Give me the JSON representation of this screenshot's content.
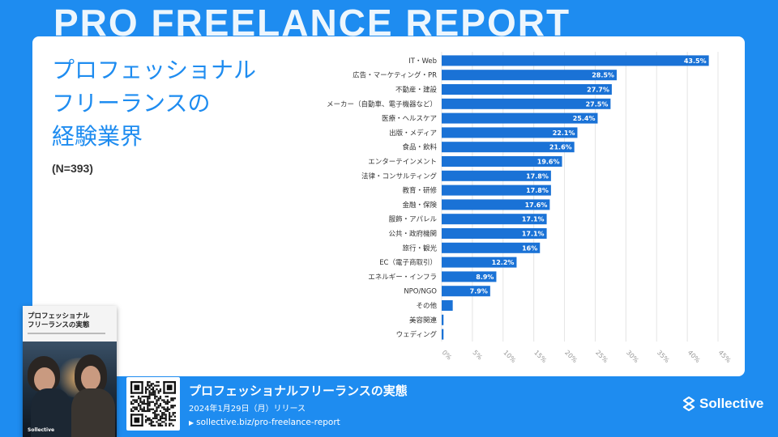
{
  "background_title": "PRO FREELANCE REPORT",
  "title_lines": [
    "プロフェッショナル",
    "フリーランスの",
    "経験業界"
  ],
  "sample_size": "(N=393)",
  "chart_data": {
    "type": "bar",
    "orientation": "horizontal",
    "categories": [
      "IT・Web",
      "広告・マーケティング・PR",
      "不動産・建設",
      "メーカー（自動車、電子機器など）",
      "医療・ヘルスケア",
      "出版・メディア",
      "食品・飲料",
      "エンターテインメント",
      "法律・コンサルティング",
      "教育・研修",
      "金融・保険",
      "服飾・アパレル",
      "公共・政府機関",
      "旅行・観光",
      "EC（電子商取引）",
      "エネルギー・インフラ",
      "NPO/NGO",
      "その他",
      "美容関連",
      "ウェディング"
    ],
    "values": [
      43.5,
      28.5,
      27.7,
      27.5,
      25.4,
      22.1,
      21.6,
      19.6,
      17.8,
      17.8,
      17.6,
      17.1,
      17.1,
      16,
      12.2,
      8.9,
      7.9,
      1.8,
      0.3,
      0.3
    ],
    "value_labels": [
      "43.5%",
      "28.5%",
      "27.7%",
      "27.5%",
      "25.4%",
      "22.1%",
      "21.6%",
      "19.6%",
      "17.8%",
      "17.8%",
      "17.6%",
      "17.1%",
      "17.1%",
      "16%",
      "12.2%",
      "8.9%",
      "7.9%",
      "",
      "",
      ""
    ],
    "x_ticks": [
      "0%",
      "5%",
      "10%",
      "15%",
      "20%",
      "25%",
      "30%",
      "35%",
      "40%",
      "45%"
    ],
    "xlim": [
      0,
      45
    ],
    "bar_color": "#1a72d6"
  },
  "book": {
    "title_lines": [
      "プロフェッショナル",
      "フリーランスの実態"
    ],
    "brand": "Sollective"
  },
  "footer": {
    "title": "プロフェッショナルフリーランスの実態",
    "date": "2024年1月29日（月）リリース",
    "url": "sollective.biz/pro-freelance-report",
    "arrow": "▶"
  },
  "logo": {
    "text": "Sollective"
  },
  "colors": {
    "brand_blue": "#1e8cf0",
    "bar": "#1a72d6"
  }
}
